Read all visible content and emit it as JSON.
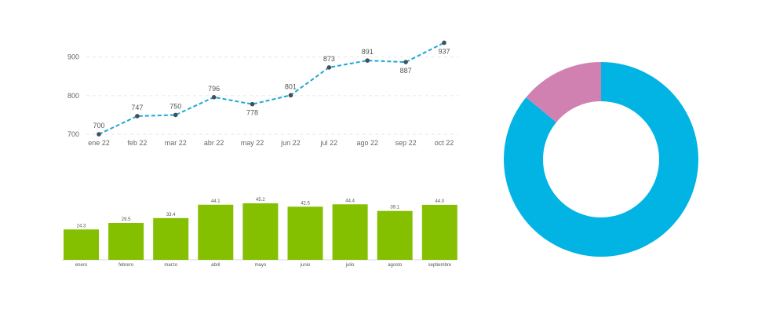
{
  "chart_data": [
    {
      "type": "line",
      "x": [
        "ene 22",
        "feb 22",
        "mar 22",
        "abr 22",
        "may 22",
        "jun 22",
        "jul 22",
        "ago 22",
        "sep 22",
        "oct 22"
      ],
      "values": [
        700,
        747,
        750,
        796,
        778,
        801,
        873,
        891,
        887,
        937
      ],
      "value_labels": [
        "700",
        "747",
        "750",
        "796",
        "778",
        "801",
        "873",
        "891",
        "887",
        "937"
      ],
      "label_position": [
        "above",
        "above",
        "above",
        "above",
        "below",
        "above",
        "above",
        "above",
        "below",
        "below"
      ],
      "yticks": [
        700,
        800,
        900
      ],
      "ytick_labels": [
        "700",
        "800",
        "900"
      ],
      "ylim": [
        700,
        940
      ],
      "grid": true,
      "line_color": "#1ca9d6",
      "marker_color": "#454f5c"
    },
    {
      "type": "bar",
      "categories": [
        "enero",
        "febrero",
        "marzo",
        "abril",
        "mayo",
        "junio",
        "julio",
        "agosto",
        "septiembre"
      ],
      "values": [
        24.3,
        29.5,
        33.4,
        44.1,
        45.2,
        42.5,
        44.4,
        39.1,
        44.0
      ],
      "value_labels": [
        "24.3",
        "29.5",
        "33.4",
        "44.1",
        "45.2",
        "42.5",
        "44.4",
        "39.1",
        "44.0"
      ],
      "ylim": [
        0,
        45.2
      ],
      "bar_color": "#84bf00"
    },
    {
      "type": "pie",
      "variant": "donut",
      "values": [
        86,
        14
      ],
      "colors": [
        "#01b4e4",
        "#d081b2"
      ],
      "start": "top",
      "direction": "clockwise"
    }
  ]
}
